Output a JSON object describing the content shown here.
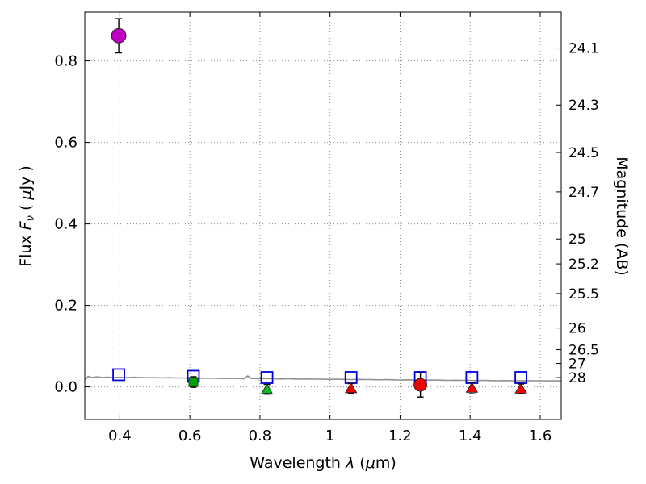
{
  "chart_data": {
    "type": "scatter",
    "title": "",
    "xlabel": "Wavelength  λ (μm)",
    "xlabel_parts": [
      {
        "t": "Wavelength  ",
        "style": "normal"
      },
      {
        "t": "λ",
        "style": "italic"
      },
      {
        "t": " (",
        "style": "normal"
      },
      {
        "t": "μ",
        "style": "italic"
      },
      {
        "t": "m)",
        "style": "normal"
      }
    ],
    "ylabel": "Flux Fν ( μJy )",
    "ylabel_parts": [
      {
        "t": "Flux  ",
        "style": "normal"
      },
      {
        "t": "F",
        "style": "italic"
      },
      {
        "t": "ν",
        "style": "sub"
      },
      {
        "t": " ( ",
        "style": "normal"
      },
      {
        "t": "μ",
        "style": "italic"
      },
      {
        "t": "Jy )",
        "style": "normal"
      }
    ],
    "ylabel_right": "Magnitude (AB)",
    "xlim": [
      0.3,
      1.66
    ],
    "ylim": [
      -0.08,
      0.92
    ],
    "grid": true,
    "xticks": [
      {
        "v": 0.4,
        "label": "0.4"
      },
      {
        "v": 0.6,
        "label": "0.6"
      },
      {
        "v": 0.8,
        "label": "0.8"
      },
      {
        "v": 1.0,
        "label": "1"
      },
      {
        "v": 1.2,
        "label": "1.2"
      },
      {
        "v": 1.4,
        "label": "1.4"
      },
      {
        "v": 1.6,
        "label": "1.6"
      }
    ],
    "yticks_left": [
      {
        "v": 0.0,
        "label": "0.0"
      },
      {
        "v": 0.2,
        "label": "0.2"
      },
      {
        "v": 0.4,
        "label": "0.4"
      },
      {
        "v": 0.6,
        "label": "0.6"
      },
      {
        "v": 0.8,
        "label": "0.8"
      }
    ],
    "yticks_right": [
      {
        "label": "24.1",
        "flux": 0.8318
      },
      {
        "label": "24.3",
        "flux": 0.6918
      },
      {
        "label": "24.5",
        "flux": 0.5754
      },
      {
        "label": "24.7",
        "flux": 0.4786
      },
      {
        "label": "25",
        "flux": 0.3631
      },
      {
        "label": "25.2",
        "flux": 0.302
      },
      {
        "label": "25.5",
        "flux": 0.2291
      },
      {
        "label": "26",
        "flux": 0.1445
      },
      {
        "label": "26.5",
        "flux": 0.0912
      },
      {
        "label": "27",
        "flux": 0.0575
      },
      {
        "label": "28",
        "flux": 0.0229
      }
    ],
    "series": [
      {
        "name": "model-spectrum",
        "type": "line",
        "color": "#909090",
        "points": [
          [
            0.3,
            0.018
          ],
          [
            0.31,
            0.026
          ],
          [
            0.32,
            0.023
          ],
          [
            0.335,
            0.025
          ],
          [
            0.35,
            0.023
          ],
          [
            0.365,
            0.024
          ],
          [
            0.38,
            0.023
          ],
          [
            0.4,
            0.0235
          ],
          [
            0.42,
            0.023
          ],
          [
            0.44,
            0.0235
          ],
          [
            0.46,
            0.023
          ],
          [
            0.48,
            0.0225
          ],
          [
            0.5,
            0.0225
          ],
          [
            0.52,
            0.022
          ],
          [
            0.54,
            0.0225
          ],
          [
            0.56,
            0.022
          ],
          [
            0.58,
            0.022
          ],
          [
            0.6,
            0.0215
          ],
          [
            0.62,
            0.0215
          ],
          [
            0.64,
            0.021
          ],
          [
            0.66,
            0.0215
          ],
          [
            0.68,
            0.021
          ],
          [
            0.7,
            0.0205
          ],
          [
            0.72,
            0.021
          ],
          [
            0.74,
            0.0205
          ],
          [
            0.755,
            0.02
          ],
          [
            0.765,
            0.027
          ],
          [
            0.775,
            0.0205
          ],
          [
            0.8,
            0.02
          ],
          [
            0.82,
            0.0205
          ],
          [
            0.84,
            0.02
          ],
          [
            0.86,
            0.0195
          ],
          [
            0.88,
            0.02
          ],
          [
            0.9,
            0.0195
          ],
          [
            0.92,
            0.019
          ],
          [
            0.94,
            0.0195
          ],
          [
            0.96,
            0.019
          ],
          [
            0.98,
            0.019
          ],
          [
            1.0,
            0.0185
          ],
          [
            1.02,
            0.019
          ],
          [
            1.04,
            0.0185
          ],
          [
            1.06,
            0.018
          ],
          [
            1.08,
            0.0185
          ],
          [
            1.1,
            0.018
          ],
          [
            1.12,
            0.018
          ],
          [
            1.14,
            0.0175
          ],
          [
            1.16,
            0.018
          ],
          [
            1.18,
            0.0175
          ],
          [
            1.2,
            0.017
          ],
          [
            1.22,
            0.0175
          ],
          [
            1.24,
            0.017
          ],
          [
            1.26,
            0.017
          ],
          [
            1.28,
            0.0165
          ],
          [
            1.3,
            0.017
          ],
          [
            1.32,
            0.0165
          ],
          [
            1.34,
            0.016
          ],
          [
            1.36,
            0.0165
          ],
          [
            1.38,
            0.016
          ],
          [
            1.4,
            0.016
          ],
          [
            1.42,
            0.0155
          ],
          [
            1.44,
            0.016
          ],
          [
            1.46,
            0.0155
          ],
          [
            1.48,
            0.015
          ],
          [
            1.5,
            0.0155
          ],
          [
            1.52,
            0.015
          ],
          [
            1.54,
            0.015
          ],
          [
            1.56,
            0.0155
          ],
          [
            1.58,
            0.015
          ],
          [
            1.6,
            0.015
          ],
          [
            1.62,
            0.0148
          ],
          [
            1.64,
            0.015
          ],
          [
            1.66,
            0.0148
          ]
        ]
      },
      {
        "name": "upper-limit-open-squares",
        "type": "scatter",
        "marker": "square-open",
        "color": "#0000dd",
        "size": 7,
        "points": [
          {
            "x": 0.397,
            "y": 0.03
          },
          {
            "x": 0.61,
            "y": 0.026
          },
          {
            "x": 0.82,
            "y": 0.023
          },
          {
            "x": 1.06,
            "y": 0.023
          },
          {
            "x": 1.258,
            "y": 0.023
          },
          {
            "x": 1.405,
            "y": 0.023
          },
          {
            "x": 1.545,
            "y": 0.023
          }
        ]
      },
      {
        "name": "magenta-detection-circle",
        "type": "scatter",
        "marker": "circle",
        "color": "#bf00bf",
        "size": 9,
        "points": [
          {
            "x": 0.397,
            "y": 0.862,
            "yerr": 0.042
          }
        ]
      },
      {
        "name": "green-detection-square",
        "type": "scatter",
        "marker": "square",
        "color": "#00a000",
        "size": 5.5,
        "points": [
          {
            "x": 0.61,
            "y": 0.012,
            "yerr": 0.013
          }
        ]
      },
      {
        "name": "green-detection-triangle",
        "type": "scatter",
        "marker": "triangle",
        "color": "#00bb22",
        "size": 6.5,
        "points": [
          {
            "x": 0.82,
            "y": -0.006,
            "yerr": 0.012
          }
        ]
      },
      {
        "name": "red-detection-triangles",
        "type": "scatter",
        "marker": "triangle",
        "color": "#ee0000",
        "size": 7,
        "points": [
          {
            "x": 1.06,
            "y": -0.004,
            "yerr": 0.012
          },
          {
            "x": 1.405,
            "y": -0.003,
            "yerr": 0.014
          },
          {
            "x": 1.545,
            "y": -0.005,
            "yerr": 0.012
          }
        ]
      },
      {
        "name": "red-detection-circle",
        "type": "scatter",
        "marker": "circle",
        "color": "#ee0000",
        "size": 8,
        "points": [
          {
            "x": 1.258,
            "y": 0.005,
            "yerr": 0.03
          }
        ]
      }
    ]
  }
}
